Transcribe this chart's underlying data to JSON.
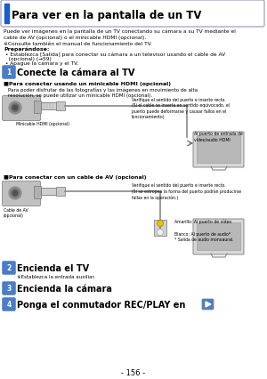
{
  "title": "Para ver en la pantalla de un TV",
  "bg_color": "#ffffff",
  "title_bar_color": "#1a5dc8",
  "intro_text": "Puede ver imágenes en la pantalla de un TV conectando su cámara a su TV mediante el\ncable de AV (opcional) o el minicable HDMI (opcional).\n※Consulte también el manual de funcionamiento del TV.",
  "prep_label": "Preparándose:",
  "prep_line1": " • Establezca [Salida] para conectar su cámara a un televisor usando el cable de AV",
  "prep_line2": "   (opcional) (→59)",
  "prep_line3": " • Apague la cámara y el TV.",
  "step1_text": "Conecte la cámara al TV",
  "hdmi_section": "■Para conectar usando un minicable HDMI (opcional)",
  "hdmi_desc1": "Para poder disfrutar de las fotografías y las imágenes en movimiento de alta",
  "hdmi_desc2": "resolución, se puede utilizar un minicable HDMI (opcional).",
  "hdmi_note1": "Verifique el sentido del puerto e inserte recto.\n(Si el cable se inserta en sentido equivocado, el\npuerto puede deformarse y causar fallos en el\nfuncionamiento)",
  "hdmi_note2": "Al puerto de entrada de video/audio HDMI",
  "hdmi_label": "Minicable HDMI (opcional)",
  "av_section": "■Para conectar con un cable de AV (opcional)",
  "av_note1": "Verifique el sentido del puerto e inserte recto.\n(Si se estropea la forma del puerto podrán producirse\nfallas en la operación.)",
  "av_note2": "Amarillo: Al puerto de vídeo",
  "av_note3": "Blanco: Al puerto de audio*\n* Salida de audio monoaural.",
  "av_label": "Cable de AV\n(opcional)",
  "step2_text": "Encienda el TV",
  "step2_sub": "※Establezca la entrada auxiliar.",
  "step3_text": "Encienda la cámara",
  "step4_text": "Ponga el conmutador REC/PLAY en",
  "page_num": "- 156 -",
  "step_color": "#4a7cc7"
}
